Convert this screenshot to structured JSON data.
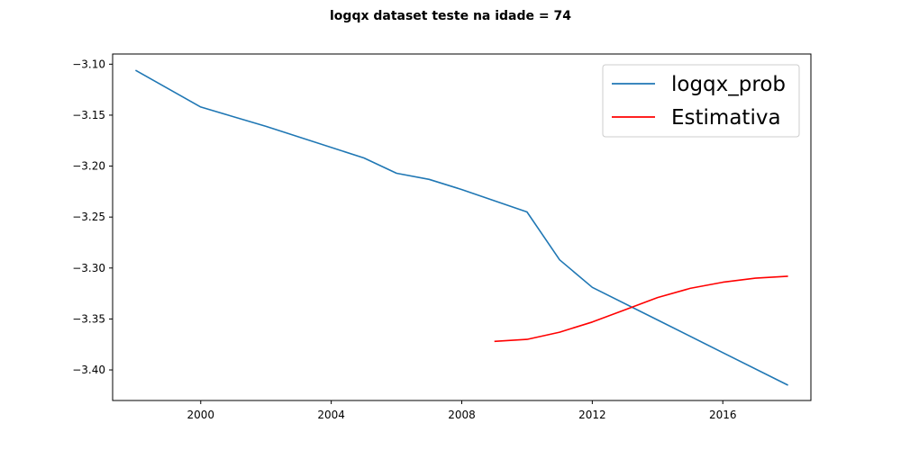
{
  "chart_data": {
    "type": "line",
    "title": "logqx dataset teste na idade = 74",
    "xlabel": "",
    "ylabel": "",
    "xlim": [
      1997.3,
      2018.7
    ],
    "ylim": [
      -3.43,
      -3.09
    ],
    "x_ticks": [
      2000,
      2004,
      2008,
      2012,
      2016
    ],
    "x_tick_labels": [
      "2000",
      "2004",
      "2008",
      "2012",
      "2016"
    ],
    "y_ticks": [
      -3.1,
      -3.15,
      -3.2,
      -3.25,
      -3.3,
      -3.35,
      -3.4
    ],
    "y_tick_labels": [
      "−3.10",
      "−3.15",
      "−3.20",
      "−3.25",
      "−3.30",
      "−3.35",
      "−3.40"
    ],
    "grid": false,
    "legend_position": "top-right",
    "series": [
      {
        "name": "logqx_prob",
        "color": "#1f77b4",
        "x": [
          1998,
          2000,
          2002,
          2005,
          2006,
          2007,
          2008,
          2010,
          2011,
          2012,
          2014,
          2016,
          2018
        ],
        "y": [
          -3.106,
          -3.142,
          -3.161,
          -3.192,
          -3.207,
          -3.213,
          -3.223,
          -3.245,
          -3.292,
          -3.319,
          -3.351,
          -3.383,
          -3.415
        ]
      },
      {
        "name": "Estimativa",
        "color": "#ff0000",
        "x": [
          2009,
          2010,
          2011,
          2012,
          2013,
          2014,
          2015,
          2016,
          2017,
          2018
        ],
        "y": [
          -3.372,
          -3.37,
          -3.363,
          -3.353,
          -3.341,
          -3.329,
          -3.32,
          -3.314,
          -3.31,
          -3.308
        ]
      }
    ]
  }
}
